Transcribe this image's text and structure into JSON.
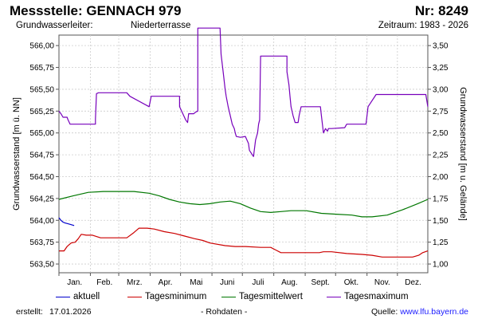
{
  "header": {
    "title": "Messstelle: GENNACH 979",
    "number": "Nr: 8249",
    "aquifer_label": "Grundwasserleiter:",
    "aquifer_value": "Niederterrasse",
    "period": "Zeitraum: 1983 - 2026"
  },
  "footer": {
    "created_label": "erstellt:",
    "created_value": "17.01.2026",
    "raw": "- Rohdaten -",
    "source_label": "Quelle:",
    "source_value": "www.lfu.bayern.de"
  },
  "chart_data": {
    "type": "line",
    "xlabel": "",
    "ylabel": "Grundwasserstand [m ü. NN]",
    "y2label": "Grundwasserstand [m u. Gelände]",
    "categories": [
      "Jan.",
      "Feb.",
      "Mrz.",
      "Apr.",
      "Mai",
      "Juni",
      "Juli",
      "Aug.",
      "Sept.",
      "Okt.",
      "Nov.",
      "Dez."
    ],
    "x_range_day_of_year": [
      1,
      365
    ],
    "ylim": [
      563.4,
      566.12
    ],
    "y_ticks": [
      "563,50",
      "563,75",
      "564,00",
      "564,25",
      "564,50",
      "564,75",
      "565,00",
      "565,25",
      "565,50",
      "565,75",
      "566,00"
    ],
    "y_tick_values": [
      563.5,
      563.75,
      564.0,
      564.25,
      564.5,
      564.75,
      565.0,
      565.25,
      565.5,
      565.75,
      566.0
    ],
    "y2_ticks": [
      "1,00",
      "1,25",
      "1,50",
      "1,75",
      "2,00",
      "2,25",
      "2,50",
      "2,75",
      "3,00",
      "3,25",
      "3,50"
    ],
    "grid": true,
    "legend_position": "bottom",
    "series": [
      {
        "name": "aktuell",
        "color": "#0000cc",
        "x": [
          1,
          3,
          5,
          7,
          10,
          13,
          16
        ],
        "y": [
          564.03,
          564.0,
          563.98,
          563.97,
          563.96,
          563.95,
          563.94
        ]
      },
      {
        "name": "Tagesminimum",
        "color": "#cc0000",
        "x": [
          1,
          6,
          9,
          13,
          17,
          20,
          23,
          28,
          34,
          42,
          50,
          60,
          68,
          75,
          80,
          88,
          95,
          105,
          115,
          125,
          135,
          143,
          150,
          165,
          175,
          185,
          200,
          210,
          215,
          220,
          228,
          240,
          250,
          258,
          262,
          270,
          285,
          300,
          310,
          320,
          330,
          340,
          350,
          356,
          360,
          365
        ],
        "y": [
          563.65,
          563.65,
          563.7,
          563.74,
          563.75,
          563.79,
          563.84,
          563.83,
          563.83,
          563.8,
          563.8,
          563.8,
          563.8,
          563.86,
          563.91,
          563.91,
          563.9,
          563.87,
          563.85,
          563.82,
          563.79,
          563.77,
          563.74,
          563.71,
          563.7,
          563.7,
          563.69,
          563.69,
          563.66,
          563.63,
          563.63,
          563.63,
          563.63,
          563.63,
          563.64,
          563.64,
          563.62,
          563.61,
          563.6,
          563.58,
          563.58,
          563.58,
          563.58,
          563.6,
          563.63,
          563.65
        ]
      },
      {
        "name": "Tagesmittelwert",
        "color": "#007700",
        "x": [
          1,
          15,
          30,
          45,
          60,
          75,
          90,
          100,
          110,
          120,
          130,
          140,
          150,
          160,
          170,
          180,
          190,
          200,
          210,
          220,
          230,
          245,
          260,
          275,
          290,
          300,
          310,
          325,
          340,
          355,
          365
        ],
        "y": [
          564.24,
          564.28,
          564.32,
          564.33,
          564.33,
          564.33,
          564.31,
          564.28,
          564.24,
          564.21,
          564.19,
          564.18,
          564.19,
          564.21,
          564.22,
          564.19,
          564.14,
          564.1,
          564.09,
          564.1,
          564.11,
          564.11,
          564.08,
          564.07,
          564.06,
          564.04,
          564.04,
          564.06,
          564.12,
          564.19,
          564.24
        ]
      },
      {
        "name": "Tagesmaximum",
        "color": "#7700bb",
        "x": [
          1,
          3,
          5,
          9,
          10,
          12,
          37,
          37,
          38,
          40,
          68,
          71,
          90,
          90,
          92,
          120,
          120,
          124,
          126,
          128,
          129,
          134,
          136,
          138,
          138,
          142,
          160,
          161,
          163,
          165,
          166,
          168,
          170,
          172,
          174,
          175,
          176,
          180,
          185,
          188,
          189,
          193,
          195,
          197,
          198,
          199,
          200,
          204,
          226,
          226,
          228,
          229,
          230,
          232,
          234,
          237,
          238,
          240,
          259,
          260,
          262,
          264,
          266,
          267,
          270,
          283,
          285,
          304,
          305,
          306,
          314,
          315,
          363,
          365
        ],
        "y": [
          565.25,
          565.22,
          565.18,
          565.18,
          565.15,
          565.1,
          565.1,
          565.16,
          565.45,
          565.46,
          565.46,
          565.42,
          565.3,
          565.3,
          565.42,
          565.42,
          565.3,
          565.2,
          565.15,
          565.12,
          565.22,
          565.22,
          565.24,
          565.25,
          566.2,
          566.2,
          566.2,
          565.9,
          565.7,
          565.5,
          565.42,
          565.3,
          565.2,
          565.1,
          565.05,
          565.0,
          564.96,
          564.95,
          564.96,
          564.88,
          564.8,
          564.73,
          564.92,
          565.0,
          565.1,
          565.15,
          565.88,
          565.88,
          565.88,
          565.7,
          565.55,
          565.42,
          565.3,
          565.2,
          565.12,
          565.12,
          565.2,
          565.3,
          565.3,
          565.2,
          565.0,
          565.05,
          565.02,
          565.05,
          565.05,
          565.06,
          565.1,
          565.1,
          565.2,
          565.3,
          565.44,
          565.44,
          565.44,
          565.3
        ]
      }
    ]
  }
}
